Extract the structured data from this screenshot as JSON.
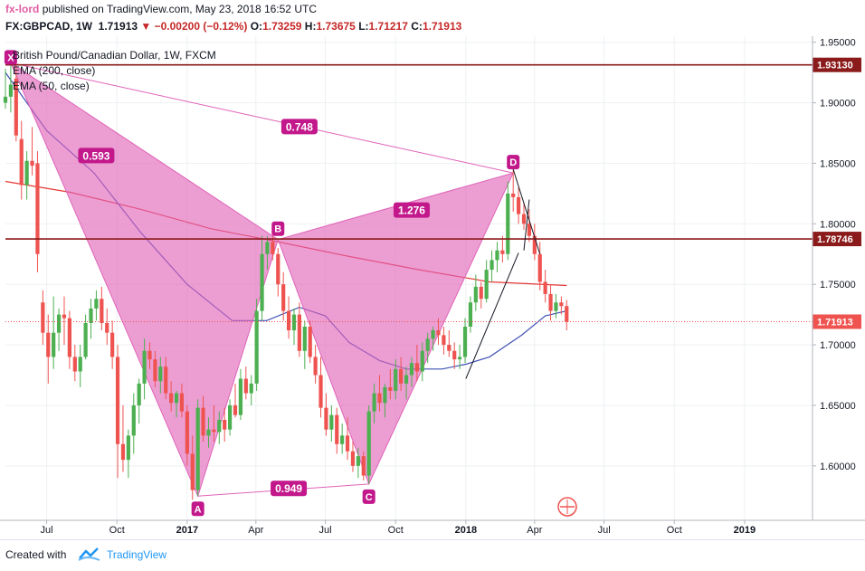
{
  "header": {
    "author": "fx-lord",
    "published_text": "published on TradingView.com, May 23, 2018 16:52 UTC",
    "symbol": "FX:GBPCAD, 1W",
    "last": "1.71913",
    "change": "▼ −0.00200 (−0.12%)",
    "open_label": "O:",
    "open": "1.73259",
    "high_label": "H:",
    "high": "1.73675",
    "low_label": "L:",
    "low": "1.71217",
    "close_label": "C:",
    "close": "1.71913"
  },
  "footer": {
    "created_with": "Created with",
    "brand": "TradingView"
  },
  "chart_data": {
    "type": "candlestick",
    "title": "British Pound/Canadian Dollar, 1W, FXCM",
    "indicators": [
      "EMA (200, close)",
      "EMA (50, close)"
    ],
    "colors": {
      "up": "#4caf50",
      "down": "#ef5350",
      "ema200": "#e53935",
      "ema50": "#3f51b5",
      "pattern": "#e063b8",
      "level": "#8b1a1a",
      "grid": "#eef0f3"
    },
    "y_axis": {
      "ticks": [
        "1.95000",
        "1.90000",
        "1.85000",
        "1.80000",
        "1.75000",
        "1.70000",
        "1.65000",
        "1.60000"
      ],
      "tick_values": [
        1.95,
        1.9,
        1.85,
        1.8,
        1.75,
        1.7,
        1.65,
        1.6
      ],
      "range": [
        1.555,
        1.955
      ],
      "position": "right"
    },
    "x_axis": {
      "ticks": [
        "Jul",
        "Oct",
        "2017",
        "Apr",
        "Jul",
        "Oct",
        "2018",
        "Apr",
        "Jul",
        "Oct",
        "2019"
      ],
      "tick_dates": [
        "2016-07-01",
        "2016-10-01",
        "2017-01-01",
        "2017-04-01",
        "2017-07-01",
        "2017-10-01",
        "2018-01-01",
        "2018-04-01",
        "2018-07-01",
        "2018-10-01",
        "2019-01-01"
      ],
      "bold_ticks": [
        "2017",
        "2018",
        "2019"
      ],
      "range": [
        "2016-05-08",
        "2019-03-31"
      ]
    },
    "price_levels": [
      {
        "label": "1.93130",
        "value": 1.9313,
        "color": "#8b1a1a"
      },
      {
        "label": "1.78746",
        "value": 1.78746,
        "color": "#8b1a1a"
      },
      {
        "label": "1.71913",
        "value": 1.71913,
        "color": "#ef5350",
        "dotted": true
      }
    ],
    "harmonic_pattern": {
      "points": [
        {
          "label": "X",
          "date": "2016-05-15",
          "value": 1.933
        },
        {
          "label": "A",
          "date": "2017-01-15",
          "value": 1.575
        },
        {
          "label": "B",
          "date": "2017-04-30",
          "value": 1.787
        },
        {
          "label": "C",
          "date": "2017-08-27",
          "value": 1.585
        },
        {
          "label": "D",
          "date": "2018-03-04",
          "value": 1.842
        }
      ],
      "ratios": [
        {
          "label": "0.593",
          "date": "2016-09-04",
          "value": 1.856
        },
        {
          "label": "0.748",
          "date": "2017-05-28",
          "value": 1.88
        },
        {
          "label": "1.276",
          "date": "2017-10-22",
          "value": 1.811
        },
        {
          "label": "0.949",
          "date": "2017-05-14",
          "value": 1.581
        }
      ]
    },
    "trendlines": [
      {
        "start_date": "2018-01-01",
        "start_value": 1.672,
        "end_date": "2018-03-11",
        "end_value": 1.776
      },
      {
        "start_date": "2018-03-04",
        "start_value": 1.845,
        "end_date": "2018-04-08",
        "end_value": 1.775
      },
      {
        "start_date": "2018-03-18",
        "start_value": 1.778,
        "end_date": "2018-03-25",
        "end_value": 1.82
      }
    ],
    "candles": [
      {
        "date": "2016-05-08",
        "o": 1.9,
        "h": 1.928,
        "l": 1.895,
        "c": 1.905
      },
      {
        "date": "2016-05-15",
        "o": 1.905,
        "h": 1.935,
        "l": 1.892,
        "c": 1.915
      },
      {
        "date": "2016-05-22",
        "o": 1.92,
        "h": 1.93,
        "l": 1.868,
        "c": 1.873
      },
      {
        "date": "2016-05-29",
        "o": 1.87,
        "h": 1.885,
        "l": 1.82,
        "c": 1.832
      },
      {
        "date": "2016-06-05",
        "o": 1.832,
        "h": 1.86,
        "l": 1.82,
        "c": 1.852
      },
      {
        "date": "2016-06-12",
        "o": 1.852,
        "h": 1.88,
        "l": 1.84,
        "c": 1.848
      },
      {
        "date": "2016-06-19",
        "o": 1.85,
        "h": 1.86,
        "l": 1.76,
        "c": 1.775
      },
      {
        "date": "2016-06-26",
        "o": 1.735,
        "h": 1.745,
        "l": 1.7,
        "c": 1.71
      },
      {
        "date": "2016-07-03",
        "o": 1.71,
        "h": 1.725,
        "l": 1.668,
        "c": 1.69
      },
      {
        "date": "2016-07-10",
        "o": 1.69,
        "h": 1.74,
        "l": 1.68,
        "c": 1.71
      },
      {
        "date": "2016-07-17",
        "o": 1.71,
        "h": 1.73,
        "l": 1.695,
        "c": 1.725
      },
      {
        "date": "2016-07-24",
        "o": 1.725,
        "h": 1.74,
        "l": 1.7,
        "c": 1.722
      },
      {
        "date": "2016-07-31",
        "o": 1.722,
        "h": 1.728,
        "l": 1.68,
        "c": 1.69
      },
      {
        "date": "2016-08-07",
        "o": 1.69,
        "h": 1.7,
        "l": 1.67,
        "c": 1.678
      },
      {
        "date": "2016-08-14",
        "o": 1.678,
        "h": 1.7,
        "l": 1.665,
        "c": 1.69
      },
      {
        "date": "2016-08-21",
        "o": 1.69,
        "h": 1.725,
        "l": 1.688,
        "c": 1.718
      },
      {
        "date": "2016-08-28",
        "o": 1.718,
        "h": 1.738,
        "l": 1.705,
        "c": 1.73
      },
      {
        "date": "2016-09-04",
        "o": 1.73,
        "h": 1.745,
        "l": 1.72,
        "c": 1.738
      },
      {
        "date": "2016-09-11",
        "o": 1.738,
        "h": 1.748,
        "l": 1.712,
        "c": 1.718
      },
      {
        "date": "2016-09-18",
        "o": 1.718,
        "h": 1.73,
        "l": 1.7,
        "c": 1.71
      },
      {
        "date": "2016-09-25",
        "o": 1.71,
        "h": 1.72,
        "l": 1.68,
        "c": 1.69
      },
      {
        "date": "2016-10-02",
        "o": 1.69,
        "h": 1.7,
        "l": 1.59,
        "c": 1.618
      },
      {
        "date": "2016-10-09",
        "o": 1.618,
        "h": 1.65,
        "l": 1.595,
        "c": 1.605
      },
      {
        "date": "2016-10-16",
        "o": 1.605,
        "h": 1.63,
        "l": 1.59,
        "c": 1.625
      },
      {
        "date": "2016-10-23",
        "o": 1.625,
        "h": 1.66,
        "l": 1.61,
        "c": 1.65
      },
      {
        "date": "2016-10-30",
        "o": 1.65,
        "h": 1.672,
        "l": 1.635,
        "c": 1.668
      },
      {
        "date": "2016-11-06",
        "o": 1.668,
        "h": 1.705,
        "l": 1.655,
        "c": 1.695
      },
      {
        "date": "2016-11-13",
        "o": 1.695,
        "h": 1.702,
        "l": 1.68,
        "c": 1.688
      },
      {
        "date": "2016-11-20",
        "o": 1.688,
        "h": 1.695,
        "l": 1.665,
        "c": 1.67
      },
      {
        "date": "2016-11-27",
        "o": 1.67,
        "h": 1.69,
        "l": 1.66,
        "c": 1.682
      },
      {
        "date": "2016-12-04",
        "o": 1.682,
        "h": 1.69,
        "l": 1.655,
        "c": 1.66
      },
      {
        "date": "2016-12-11",
        "o": 1.66,
        "h": 1.67,
        "l": 1.645,
        "c": 1.652
      },
      {
        "date": "2016-12-18",
        "o": 1.652,
        "h": 1.662,
        "l": 1.64,
        "c": 1.66
      },
      {
        "date": "2016-12-25",
        "o": 1.66,
        "h": 1.668,
        "l": 1.64,
        "c": 1.645
      },
      {
        "date": "2017-01-01",
        "o": 1.645,
        "h": 1.65,
        "l": 1.6,
        "c": 1.61
      },
      {
        "date": "2017-01-08",
        "o": 1.61,
        "h": 1.625,
        "l": 1.572,
        "c": 1.58
      },
      {
        "date": "2017-01-15",
        "o": 1.58,
        "h": 1.655,
        "l": 1.575,
        "c": 1.648
      },
      {
        "date": "2017-01-22",
        "o": 1.648,
        "h": 1.658,
        "l": 1.62,
        "c": 1.625
      },
      {
        "date": "2017-01-29",
        "o": 1.625,
        "h": 1.64,
        "l": 1.615,
        "c": 1.63
      },
      {
        "date": "2017-02-05",
        "o": 1.63,
        "h": 1.65,
        "l": 1.62,
        "c": 1.628
      },
      {
        "date": "2017-02-12",
        "o": 1.628,
        "h": 1.645,
        "l": 1.618,
        "c": 1.638
      },
      {
        "date": "2017-02-19",
        "o": 1.638,
        "h": 1.648,
        "l": 1.62,
        "c": 1.63
      },
      {
        "date": "2017-02-26",
        "o": 1.63,
        "h": 1.655,
        "l": 1.625,
        "c": 1.65
      },
      {
        "date": "2017-03-05",
        "o": 1.65,
        "h": 1.668,
        "l": 1.64,
        "c": 1.642
      },
      {
        "date": "2017-03-12",
        "o": 1.642,
        "h": 1.68,
        "l": 1.638,
        "c": 1.672
      },
      {
        "date": "2017-03-19",
        "o": 1.672,
        "h": 1.682,
        "l": 1.655,
        "c": 1.66
      },
      {
        "date": "2017-03-26",
        "o": 1.66,
        "h": 1.675,
        "l": 1.65,
        "c": 1.668
      },
      {
        "date": "2017-04-02",
        "o": 1.668,
        "h": 1.738,
        "l": 1.662,
        "c": 1.728
      },
      {
        "date": "2017-04-09",
        "o": 1.728,
        "h": 1.79,
        "l": 1.72,
        "c": 1.775
      },
      {
        "date": "2017-04-16",
        "o": 1.775,
        "h": 1.79,
        "l": 1.762,
        "c": 1.785
      },
      {
        "date": "2017-04-23",
        "o": 1.785,
        "h": 1.79,
        "l": 1.77,
        "c": 1.775
      },
      {
        "date": "2017-04-30",
        "o": 1.775,
        "h": 1.78,
        "l": 1.74,
        "c": 1.75
      },
      {
        "date": "2017-05-07",
        "o": 1.75,
        "h": 1.76,
        "l": 1.72,
        "c": 1.728
      },
      {
        "date": "2017-05-14",
        "o": 1.728,
        "h": 1.74,
        "l": 1.705,
        "c": 1.712
      },
      {
        "date": "2017-05-21",
        "o": 1.712,
        "h": 1.73,
        "l": 1.7,
        "c": 1.725
      },
      {
        "date": "2017-05-28",
        "o": 1.725,
        "h": 1.735,
        "l": 1.69,
        "c": 1.695
      },
      {
        "date": "2017-06-04",
        "o": 1.695,
        "h": 1.72,
        "l": 1.68,
        "c": 1.715
      },
      {
        "date": "2017-06-11",
        "o": 1.715,
        "h": 1.72,
        "l": 1.685,
        "c": 1.69
      },
      {
        "date": "2017-06-18",
        "o": 1.69,
        "h": 1.7,
        "l": 1.668,
        "c": 1.675
      },
      {
        "date": "2017-06-25",
        "o": 1.675,
        "h": 1.69,
        "l": 1.64,
        "c": 1.648
      },
      {
        "date": "2017-07-02",
        "o": 1.648,
        "h": 1.66,
        "l": 1.625,
        "c": 1.63
      },
      {
        "date": "2017-07-09",
        "o": 1.63,
        "h": 1.65,
        "l": 1.62,
        "c": 1.642
      },
      {
        "date": "2017-07-16",
        "o": 1.642,
        "h": 1.648,
        "l": 1.61,
        "c": 1.618
      },
      {
        "date": "2017-07-23",
        "o": 1.618,
        "h": 1.635,
        "l": 1.61,
        "c": 1.625
      },
      {
        "date": "2017-07-30",
        "o": 1.625,
        "h": 1.64,
        "l": 1.605,
        "c": 1.612
      },
      {
        "date": "2017-08-06",
        "o": 1.612,
        "h": 1.62,
        "l": 1.595,
        "c": 1.6
      },
      {
        "date": "2017-08-13",
        "o": 1.6,
        "h": 1.615,
        "l": 1.59,
        "c": 1.608
      },
      {
        "date": "2017-08-20",
        "o": 1.608,
        "h": 1.612,
        "l": 1.588,
        "c": 1.592
      },
      {
        "date": "2017-08-27",
        "o": 1.592,
        "h": 1.65,
        "l": 1.585,
        "c": 1.645
      },
      {
        "date": "2017-09-03",
        "o": 1.645,
        "h": 1.668,
        "l": 1.635,
        "c": 1.66
      },
      {
        "date": "2017-09-10",
        "o": 1.66,
        "h": 1.675,
        "l": 1.645,
        "c": 1.652
      },
      {
        "date": "2017-09-17",
        "o": 1.652,
        "h": 1.668,
        "l": 1.64,
        "c": 1.665
      },
      {
        "date": "2017-09-24",
        "o": 1.665,
        "h": 1.68,
        "l": 1.655,
        "c": 1.662
      },
      {
        "date": "2017-10-01",
        "o": 1.662,
        "h": 1.688,
        "l": 1.655,
        "c": 1.68
      },
      {
        "date": "2017-10-08",
        "o": 1.68,
        "h": 1.69,
        "l": 1.662,
        "c": 1.668
      },
      {
        "date": "2017-10-15",
        "o": 1.668,
        "h": 1.682,
        "l": 1.655,
        "c": 1.675
      },
      {
        "date": "2017-10-22",
        "o": 1.675,
        "h": 1.69,
        "l": 1.665,
        "c": 1.685
      },
      {
        "date": "2017-10-29",
        "o": 1.685,
        "h": 1.7,
        "l": 1.67,
        "c": 1.678
      },
      {
        "date": "2017-11-05",
        "o": 1.678,
        "h": 1.702,
        "l": 1.67,
        "c": 1.695
      },
      {
        "date": "2017-11-12",
        "o": 1.695,
        "h": 1.71,
        "l": 1.685,
        "c": 1.705
      },
      {
        "date": "2017-11-19",
        "o": 1.705,
        "h": 1.715,
        "l": 1.695,
        "c": 1.712
      },
      {
        "date": "2017-11-26",
        "o": 1.712,
        "h": 1.722,
        "l": 1.7,
        "c": 1.708
      },
      {
        "date": "2017-12-03",
        "o": 1.708,
        "h": 1.715,
        "l": 1.692,
        "c": 1.7
      },
      {
        "date": "2017-12-10",
        "o": 1.7,
        "h": 1.712,
        "l": 1.69,
        "c": 1.695
      },
      {
        "date": "2017-12-17",
        "o": 1.695,
        "h": 1.702,
        "l": 1.68,
        "c": 1.688
      },
      {
        "date": "2017-12-24",
        "o": 1.688,
        "h": 1.7,
        "l": 1.68,
        "c": 1.69
      },
      {
        "date": "2017-12-31",
        "o": 1.69,
        "h": 1.722,
        "l": 1.685,
        "c": 1.715
      },
      {
        "date": "2018-01-07",
        "o": 1.715,
        "h": 1.74,
        "l": 1.71,
        "c": 1.735
      },
      {
        "date": "2018-01-14",
        "o": 1.735,
        "h": 1.758,
        "l": 1.728,
        "c": 1.748
      },
      {
        "date": "2018-01-21",
        "o": 1.748,
        "h": 1.752,
        "l": 1.73,
        "c": 1.738
      },
      {
        "date": "2018-01-28",
        "o": 1.738,
        "h": 1.77,
        "l": 1.735,
        "c": 1.762
      },
      {
        "date": "2018-02-04",
        "o": 1.762,
        "h": 1.778,
        "l": 1.752,
        "c": 1.77
      },
      {
        "date": "2018-02-11",
        "o": 1.77,
        "h": 1.785,
        "l": 1.76,
        "c": 1.778
      },
      {
        "date": "2018-02-18",
        "o": 1.778,
        "h": 1.79,
        "l": 1.768,
        "c": 1.775
      },
      {
        "date": "2018-02-25",
        "o": 1.775,
        "h": 1.835,
        "l": 1.77,
        "c": 1.825
      },
      {
        "date": "2018-03-04",
        "o": 1.825,
        "h": 1.845,
        "l": 1.81,
        "c": 1.822
      },
      {
        "date": "2018-03-11",
        "o": 1.822,
        "h": 1.83,
        "l": 1.8,
        "c": 1.808
      },
      {
        "date": "2018-03-18",
        "o": 1.808,
        "h": 1.818,
        "l": 1.795,
        "c": 1.8
      },
      {
        "date": "2018-03-25",
        "o": 1.8,
        "h": 1.812,
        "l": 1.785,
        "c": 1.79
      },
      {
        "date": "2018-04-01",
        "o": 1.79,
        "h": 1.8,
        "l": 1.77,
        "c": 1.775
      },
      {
        "date": "2018-04-08",
        "o": 1.775,
        "h": 1.785,
        "l": 1.745,
        "c": 1.752
      },
      {
        "date": "2018-04-15",
        "o": 1.752,
        "h": 1.762,
        "l": 1.735,
        "c": 1.742
      },
      {
        "date": "2018-04-22",
        "o": 1.742,
        "h": 1.75,
        "l": 1.72,
        "c": 1.728
      },
      {
        "date": "2018-04-29",
        "o": 1.728,
        "h": 1.742,
        "l": 1.722,
        "c": 1.735
      },
      {
        "date": "2018-05-06",
        "o": 1.735,
        "h": 1.74,
        "l": 1.725,
        "c": 1.732
      },
      {
        "date": "2018-05-13",
        "o": 1.732,
        "h": 1.737,
        "l": 1.712,
        "c": 1.719
      }
    ],
    "ema200": [
      {
        "date": "2016-05-08",
        "value": 1.835
      },
      {
        "date": "2016-08-01",
        "value": 1.826
      },
      {
        "date": "2016-11-01",
        "value": 1.812
      },
      {
        "date": "2017-02-01",
        "value": 1.796
      },
      {
        "date": "2017-05-01",
        "value": 1.785
      },
      {
        "date": "2017-08-01",
        "value": 1.773
      },
      {
        "date": "2017-11-01",
        "value": 1.762
      },
      {
        "date": "2018-02-01",
        "value": 1.752
      },
      {
        "date": "2018-05-13",
        "value": 1.749
      }
    ],
    "ema50": [
      {
        "date": "2016-05-08",
        "value": 1.925
      },
      {
        "date": "2016-07-01",
        "value": 1.877
      },
      {
        "date": "2016-09-01",
        "value": 1.842
      },
      {
        "date": "2016-11-01",
        "value": 1.793
      },
      {
        "date": "2017-01-01",
        "value": 1.75
      },
      {
        "date": "2017-03-01",
        "value": 1.72
      },
      {
        "date": "2017-04-15",
        "value": 1.72
      },
      {
        "date": "2017-05-28",
        "value": 1.731
      },
      {
        "date": "2017-07-01",
        "value": 1.724
      },
      {
        "date": "2017-08-01",
        "value": 1.702
      },
      {
        "date": "2017-09-10",
        "value": 1.687
      },
      {
        "date": "2017-10-15",
        "value": 1.68
      },
      {
        "date": "2017-12-01",
        "value": 1.68
      },
      {
        "date": "2018-01-01",
        "value": 1.684
      },
      {
        "date": "2018-02-01",
        "value": 1.69
      },
      {
        "date": "2018-03-15",
        "value": 1.708
      },
      {
        "date": "2018-04-15",
        "value": 1.724
      },
      {
        "date": "2018-05-13",
        "value": 1.728
      }
    ]
  }
}
